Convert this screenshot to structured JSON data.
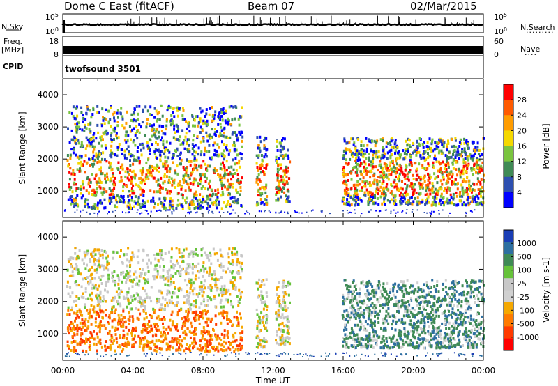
{
  "header": {
    "station": "Dome C East (fitACF)",
    "beam": "Beam 07",
    "date": "02/Mar/2015"
  },
  "left_labels": {
    "nsky": "N.Sky",
    "freq_line1": "Freq.",
    "freq_line2": "[MHz]",
    "cpid": "CPID"
  },
  "right_labels": {
    "nsearch": "N.Search",
    "nsearch_dots": "·········",
    "nave": "Nave",
    "nave_dots": "····"
  },
  "cpid_value": "twofsound 3501",
  "colors": {
    "power": [
      "#0000ff",
      "#2d4fb0",
      "#3f8a55",
      "#7ac43f",
      "#f5d800",
      "#ff9c00",
      "#ff5a00",
      "#ff0000"
    ],
    "velocity": [
      "#1a3db5",
      "#2d6fa0",
      "#3f8a55",
      "#66c23a",
      "#c8c8c8",
      "#d0d0d0",
      "#f5a800",
      "#ff7a00",
      "#ff3a00",
      "#ff0000"
    ]
  },
  "chart_data": [
    {
      "type": "line",
      "name": "noise-panel",
      "left_ticks": [
        "10^5",
        "10^0"
      ],
      "right_ticks": [
        "10^5",
        "10^0"
      ],
      "left_series": "N.Sky",
      "right_series": "N.Search"
    },
    {
      "type": "line",
      "name": "freq-nave-panel",
      "left_ylim": [
        8,
        18
      ],
      "left_ticks": [
        "18",
        "8"
      ],
      "right_ylim": [
        0,
        60
      ],
      "right_ticks": [
        "60",
        "0"
      ]
    },
    {
      "type": "heatmap",
      "name": "power-panel",
      "ylabel": "Slant Range [km]",
      "ylim": [
        180,
        4500
      ],
      "yticks": [
        1000,
        2000,
        3000,
        4000
      ],
      "xlim_hours": [
        0,
        24
      ],
      "xticks": [
        "00:00",
        "04:00",
        "08:00",
        "12:00",
        "16:00",
        "20:00",
        "00:00"
      ],
      "colorbar_label": "Power [dB]",
      "colorbar_ticks": [
        "28",
        "24",
        "20",
        "16",
        "12",
        "8",
        "4"
      ],
      "colorbar_range": [
        0,
        32
      ],
      "scatter_regions": [
        {
          "t0": 0.2,
          "t1": 10.2,
          "r0": 500,
          "r1": 3700
        },
        {
          "t0": 11.0,
          "t1": 11.6,
          "r0": 600,
          "r1": 2800
        },
        {
          "t0": 12.1,
          "t1": 12.9,
          "r0": 700,
          "r1": 2700
        },
        {
          "t0": 15.9,
          "t1": 24.0,
          "r0": 600,
          "r1": 2700
        }
      ]
    },
    {
      "type": "heatmap",
      "name": "velocity-panel",
      "ylabel": "Slant Range [km]",
      "ylim": [
        180,
        4500
      ],
      "yticks": [
        1000,
        2000,
        3000,
        4000
      ],
      "xlim_hours": [
        0,
        24
      ],
      "xticks": [
        "00:00",
        "04:00",
        "08:00",
        "12:00",
        "16:00",
        "20:00",
        "00:00"
      ],
      "xlabel": "Time UT",
      "colorbar_label": "Velocity [m s-1]",
      "colorbar_ticks": [
        "1000",
        "500",
        "100",
        "25",
        "-25",
        "-100",
        "-500",
        "-1000"
      ]
    }
  ]
}
